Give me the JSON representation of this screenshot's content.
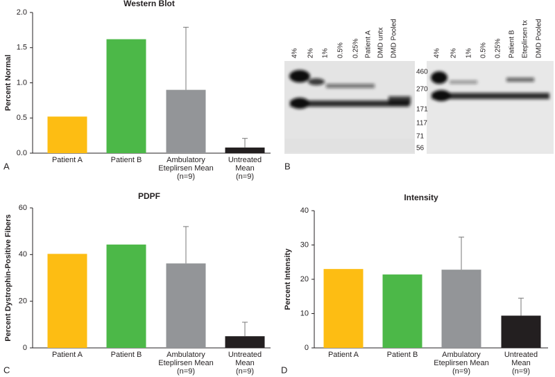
{
  "chart_data": [
    {
      "type": "bar",
      "panel_label": "A",
      "title": "Western Blot",
      "y_label": "Percent Normal",
      "categories": [
        "Patient A",
        "Patient B",
        "Ambulatory\nEteplirsen Mean\n(n=9)",
        "Untreated\nMean\n(n=9)"
      ],
      "values": [
        0.52,
        1.62,
        0.9,
        0.08
      ],
      "errors": [
        null,
        null,
        0.89,
        0.13
      ],
      "colors": [
        "#fdbd13",
        "#4cb848",
        "#939598",
        "#231f20"
      ],
      "ylim": [
        0,
        2.0
      ],
      "yticks": [
        {
          "value": 0,
          "label": "0.0"
        },
        0.5,
        {
          "value": 1,
          "label": "1.0"
        },
        1.5,
        {
          "value": 2,
          "label": "2.0"
        }
      ],
      "grid": false
    },
    {
      "type": "bar",
      "panel_label": "C",
      "title": "PDPF",
      "y_label": "Percent Dystrophin-Positive Fibers",
      "categories": [
        "Patient A",
        "Patient B",
        "Ambulatory\nEteplirsen Mean\n(n=9)",
        "Untreated\nMean\n(n=9)"
      ],
      "values": [
        40.3,
        44.3,
        36.2,
        5.0
      ],
      "errors": [
        null,
        null,
        15.8,
        6.0
      ],
      "colors": [
        "#fdbd13",
        "#4cb848",
        "#939598",
        "#231f20"
      ],
      "ylim": [
        0,
        60
      ],
      "yticks": [
        0,
        20,
        40,
        60
      ],
      "grid": false
    },
    {
      "type": "bar",
      "panel_label": "D",
      "title": "Intensity",
      "y_label": "Percent Intensity",
      "categories": [
        "Patient A",
        "Patient B",
        "Ambulatory\nEteplirsen Mean\n(n=9)",
        "Untreated\nMean\n(n=9)"
      ],
      "values": [
        23.0,
        21.4,
        22.8,
        9.4
      ],
      "errors": [
        null,
        null,
        9.5,
        5.1
      ],
      "colors": [
        "#fdbd13",
        "#4cb848",
        "#939598",
        "#231f20"
      ],
      "ylim": [
        0,
        40
      ],
      "yticks": [
        0,
        10,
        20,
        30,
        40
      ],
      "grid": false
    }
  ],
  "blot": {
    "panel_label": "B",
    "left_lanes": [
      "4%",
      "2%",
      "1%",
      "0.5%",
      "0.25%",
      "Patient A",
      "DMD untx",
      "DMD Pooled"
    ],
    "right_lanes": [
      "4%",
      "2%",
      "1%",
      "0.5%",
      "0.25%",
      "Patient B",
      "Eteplirsen tx",
      "DMD Pooled"
    ],
    "markers": [
      460,
      270,
      171,
      117,
      71,
      56
    ]
  }
}
